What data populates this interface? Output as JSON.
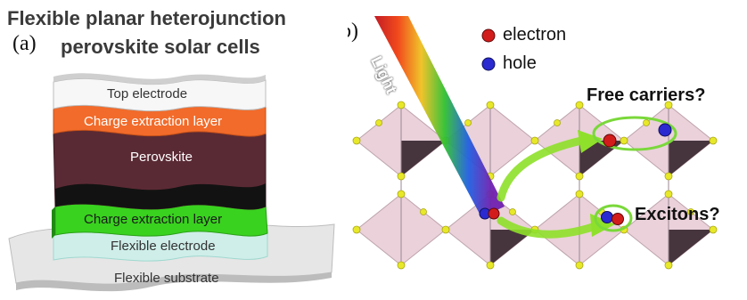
{
  "panel_a": {
    "label": "(a)",
    "title_line1": "Flexible planar heterojunction",
    "title_line2": "perovskite solar cells",
    "layers": [
      {
        "label": "Top electrode",
        "color": "#f5f5f5",
        "text_color": "#333333"
      },
      {
        "label": "Charge extraction layer",
        "color": "#f26b2a",
        "text_color": "#ffffff"
      },
      {
        "label": "Perovskite",
        "color": "#5a2a34",
        "text_color": "#ffffff"
      },
      {
        "label": "Charge extraction layer",
        "color": "#39d21f",
        "text_color": "#1a1a1a"
      },
      {
        "label": "Flexible electrode",
        "color": "#cfeee9",
        "text_color": "#333333"
      },
      {
        "label": "Flexible substrate",
        "color": "#e6e6e6",
        "text_color": "#333333"
      }
    ]
  },
  "panel_b": {
    "label": "(b)",
    "beam_label": "Light",
    "legend": [
      {
        "label": "electron",
        "color": "#d21c1c"
      },
      {
        "label": "hole",
        "color": "#2a2ad0"
      }
    ],
    "callouts": {
      "free_carriers": "Free carriers?",
      "excitons": "Excitons?"
    },
    "colors": {
      "octahedron": "#e8cdd6",
      "octahedron_dark": "#2a1a22",
      "atom": "#e8e82a",
      "ellipse": "#7ad83a",
      "arrow": "#8fe02a"
    }
  }
}
